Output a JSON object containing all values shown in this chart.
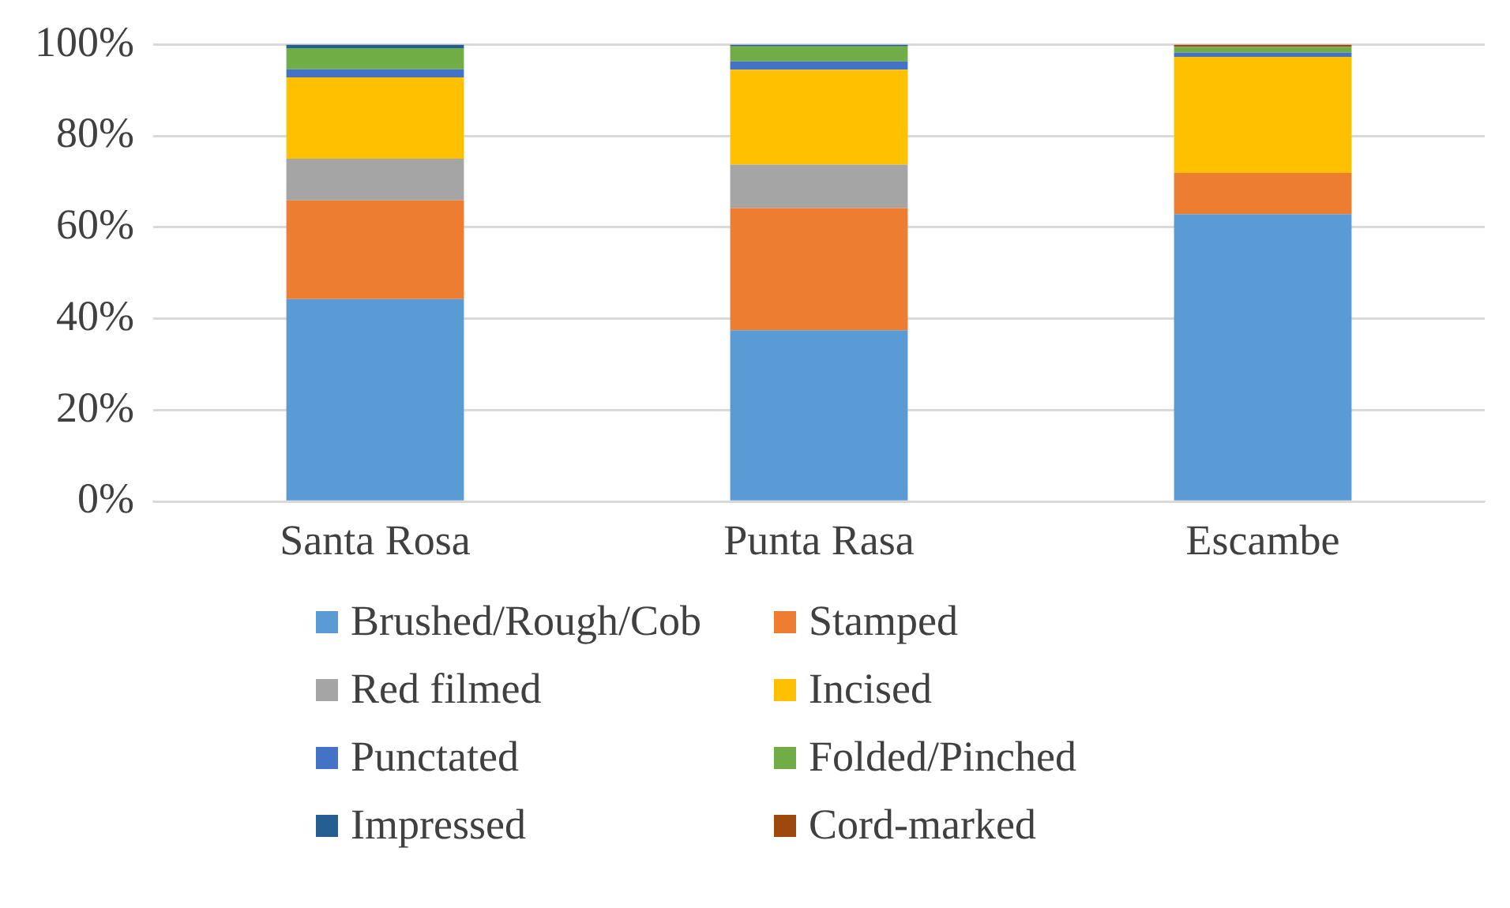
{
  "chart_data": {
    "type": "bar",
    "stacked": true,
    "categories": [
      "Santa Rosa",
      "Punta Rasa",
      "Escambe"
    ],
    "series": [
      {
        "name": "Brushed/Rough/Cob",
        "color": "#5b9bd5",
        "values": [
          44.3,
          37.5,
          62.9
        ]
      },
      {
        "name": "Stamped",
        "color": "#ed7d31",
        "values": [
          21.6,
          26.7,
          9.0
        ]
      },
      {
        "name": "Red filmed",
        "color": "#a5a5a5",
        "values": [
          9.1,
          9.5,
          0
        ]
      },
      {
        "name": "Incised",
        "color": "#ffc000",
        "values": [
          17.8,
          20.8,
          25.4
        ]
      },
      {
        "name": "Punctated",
        "color": "#4472c4",
        "values": [
          1.8,
          1.8,
          0.9
        ]
      },
      {
        "name": "Folded/Pinched",
        "color": "#70ad47",
        "values": [
          4.6,
          3.3,
          1.3
        ]
      },
      {
        "name": "Impressed",
        "color": "#255e91",
        "values": [
          0.8,
          0.4,
          0
        ]
      },
      {
        "name": "Cord-marked",
        "color": "#9e480e",
        "values": [
          0,
          0,
          0.5
        ]
      }
    ],
    "ylim": [
      0,
      100
    ],
    "yticks": [
      {
        "value": 0,
        "label": "0%"
      },
      {
        "value": 20,
        "label": "20%"
      },
      {
        "value": 40,
        "label": "40%"
      },
      {
        "value": 60,
        "label": "60%"
      },
      {
        "value": 80,
        "label": "80%"
      },
      {
        "value": 100,
        "label": "100%"
      }
    ],
    "grid": "y",
    "legend": "bottom"
  }
}
